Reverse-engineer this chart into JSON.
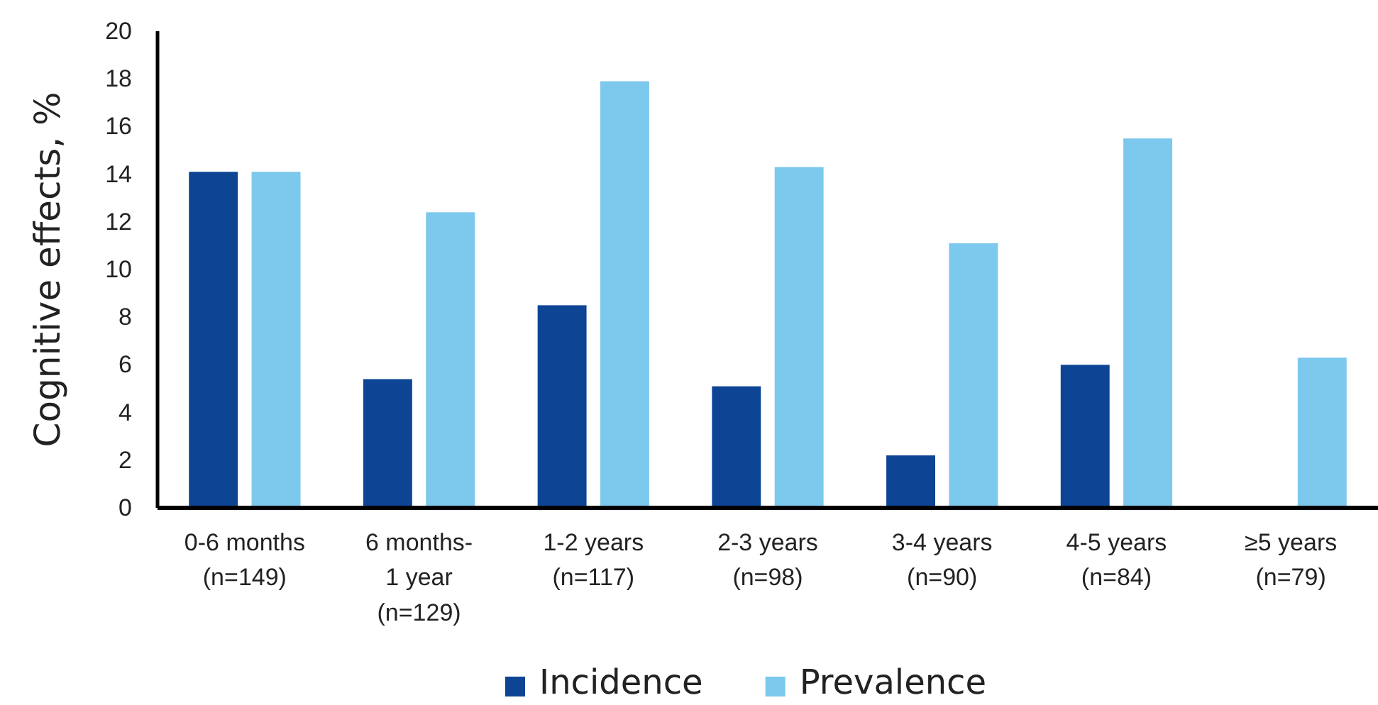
{
  "chart_data": {
    "type": "bar",
    "ylabel": "Cognitive effects, %",
    "categories": [
      "0-6 months\n(n=149)",
      "6 months-\n1 year\n(n=129)",
      "1-2 years\n(n=117)",
      "2-3 years\n(n=98)",
      "3-4 years\n(n=90)",
      "4-5 years\n(n=84)",
      "≥5 years\n(n=79)"
    ],
    "series": [
      {
        "name": "Incidence",
        "color": "#0d4594",
        "values": [
          14.1,
          5.4,
          8.5,
          5.1,
          2.2,
          6.0,
          null
        ]
      },
      {
        "name": "Prevalence",
        "color": "#7dc8ed",
        "values": [
          14.1,
          12.4,
          17.9,
          14.3,
          11.1,
          15.5,
          6.3
        ]
      }
    ],
    "ylim": [
      0,
      20
    ],
    "yticks": [
      0,
      2,
      4,
      6,
      8,
      10,
      12,
      14,
      16,
      18,
      20
    ],
    "grid": false,
    "legend": "bottom"
  }
}
